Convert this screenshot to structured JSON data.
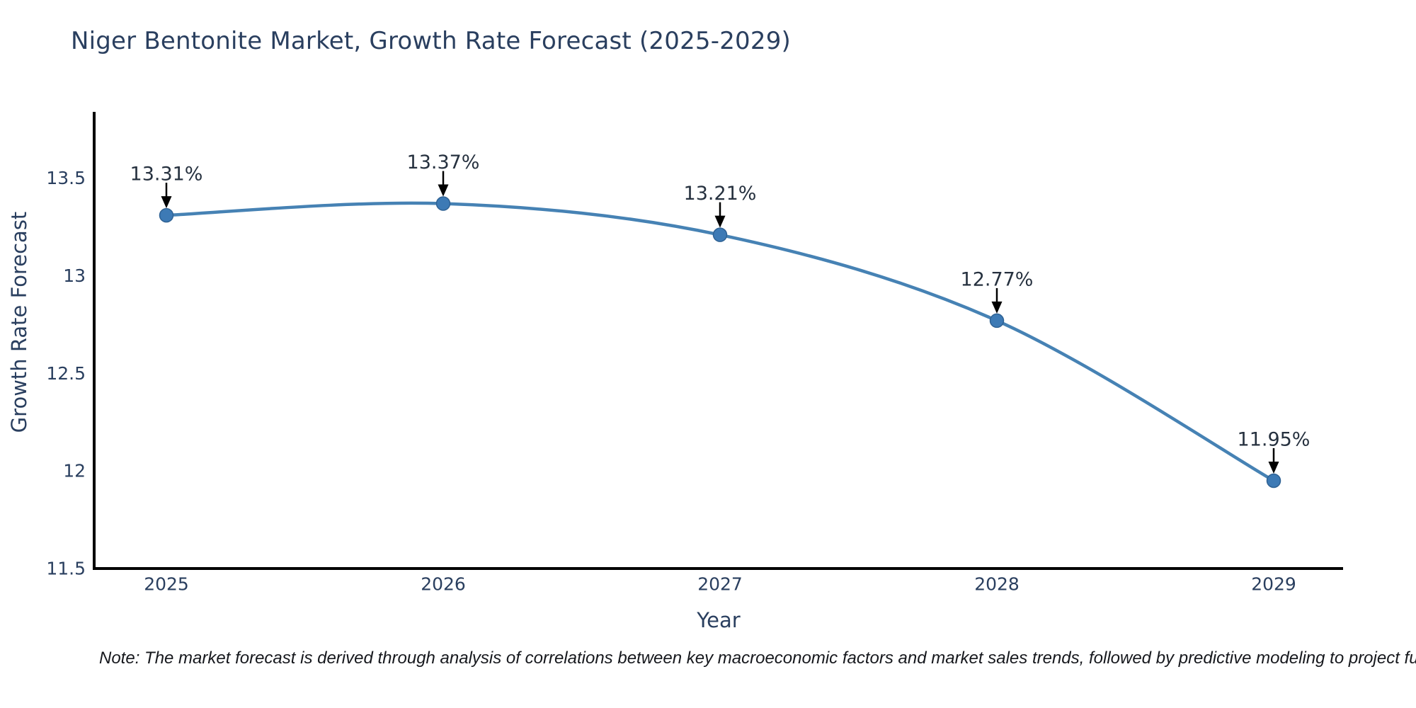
{
  "note": "Note: The market forecast is derived through analysis of correlations between key macroeconomic factors and market sales trends, followed by predictive modeling to project future sal",
  "chart_data": {
    "type": "line",
    "title": "Niger Bentonite Market, Growth Rate Forecast (2025-2029)",
    "x": [
      2025,
      2026,
      2027,
      2028,
      2029
    ],
    "values": [
      13.31,
      13.37,
      13.21,
      12.77,
      11.95
    ],
    "point_labels": [
      "13.31%",
      "13.37%",
      "13.21%",
      "12.77%",
      "11.95%"
    ],
    "xlabel": "Year",
    "ylabel": "Growth Rate Forecast",
    "xtick_labels": [
      "2025",
      "2026",
      "2027",
      "2028",
      "2029"
    ],
    "ytick_values": [
      11.5,
      12,
      12.5,
      13,
      13.5
    ],
    "ytick_labels": [
      "11.5",
      "12",
      "12.5",
      "13",
      "13.5"
    ],
    "ylim": [
      11.5,
      13.84
    ],
    "line_shape": "spline",
    "marker": "circle",
    "grid": false,
    "legend_position": "none",
    "colors": {
      "line": "#4682b4",
      "marker_fill": "#3d7ab5",
      "marker_edge": "#2f6294",
      "spine": "#000000",
      "axis_text": "#2a3f5f",
      "annotation_text": "#26313f",
      "arrow": "#000000",
      "note_text": "#16181d",
      "background": "#ffffff"
    }
  }
}
